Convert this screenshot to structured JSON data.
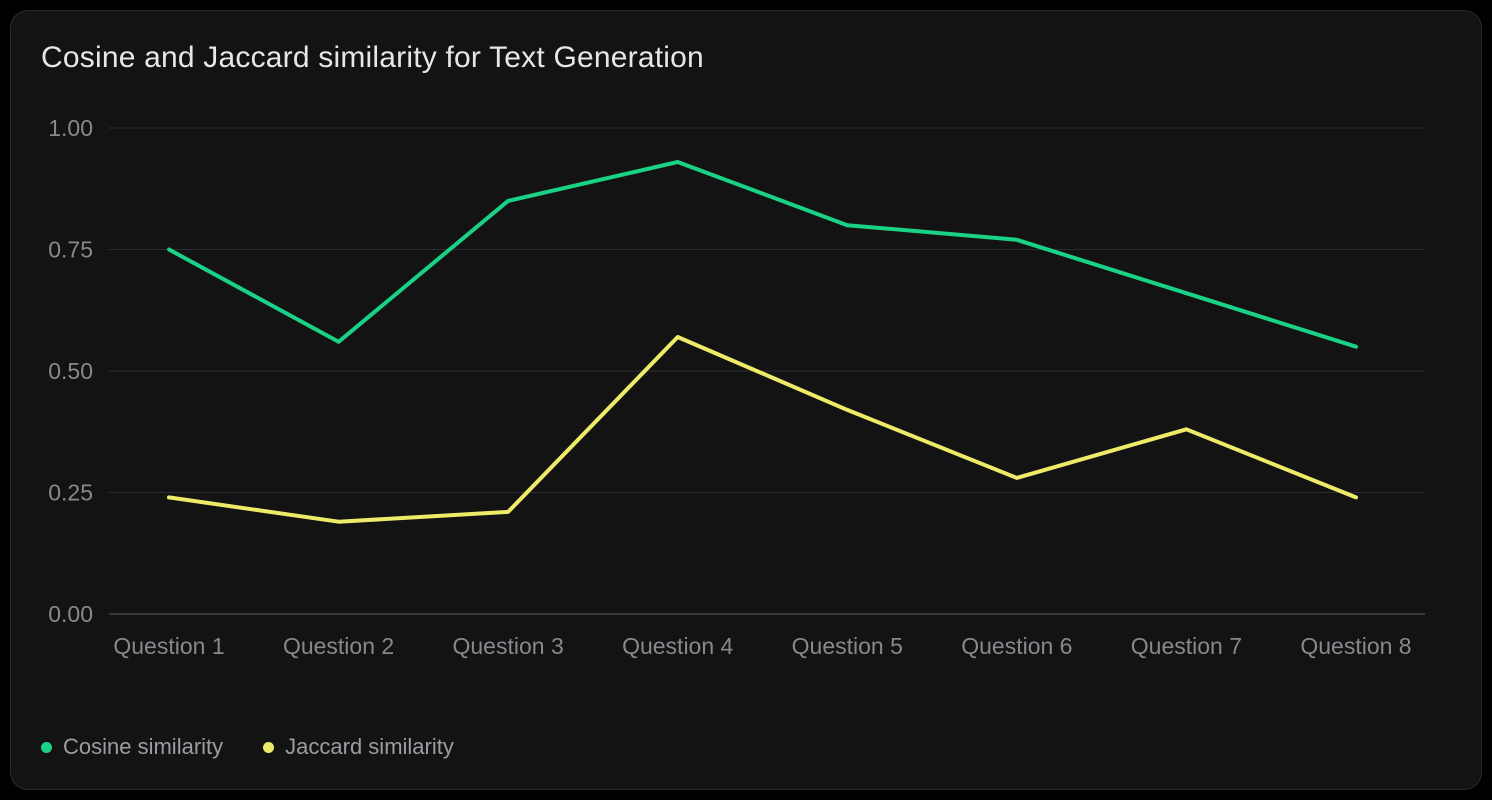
{
  "card": {
    "title": "Cosine and Jaccard similarity for Text Generation"
  },
  "colors": {
    "page_background": "#000000",
    "card_background": "#131313",
    "title_text": "#e6e7e9",
    "axis_label_text": "#86898e",
    "legend_text": "#9a9ea3",
    "gridline": "#2b2d31",
    "axis_line": "#43464b",
    "cosine_series": "#1ad285",
    "jaccard_series": "#eeeb69"
  },
  "chart_data": {
    "type": "line",
    "title": "Cosine and Jaccard similarity for Text Generation",
    "categories": [
      "Question 1",
      "Question 2",
      "Question 3",
      "Question 4",
      "Question 5",
      "Question 6",
      "Question 7",
      "Question 8"
    ],
    "series": [
      {
        "name": "Cosine similarity",
        "color": "#1ad285",
        "values": [
          0.75,
          0.56,
          0.85,
          0.93,
          0.8,
          0.77,
          0.66,
          0.55
        ]
      },
      {
        "name": "Jaccard similarity",
        "color": "#eeeb69",
        "values": [
          0.24,
          0.19,
          0.21,
          0.57,
          0.42,
          0.28,
          0.38,
          0.24
        ]
      }
    ],
    "xlabel": "",
    "ylabel": "",
    "ylim": [
      0.0,
      1.0
    ],
    "yticks": [
      0.0,
      0.25,
      0.5,
      0.75,
      1.0
    ],
    "ytick_labels": [
      "0.00",
      "0.25",
      "0.50",
      "0.75",
      "1.00"
    ],
    "grid": true,
    "legend_position": "bottom-left"
  },
  "legend": {
    "items": [
      {
        "label": "Cosine similarity",
        "color": "#1ad285"
      },
      {
        "label": "Jaccard similarity",
        "color": "#eeeb69"
      }
    ]
  }
}
